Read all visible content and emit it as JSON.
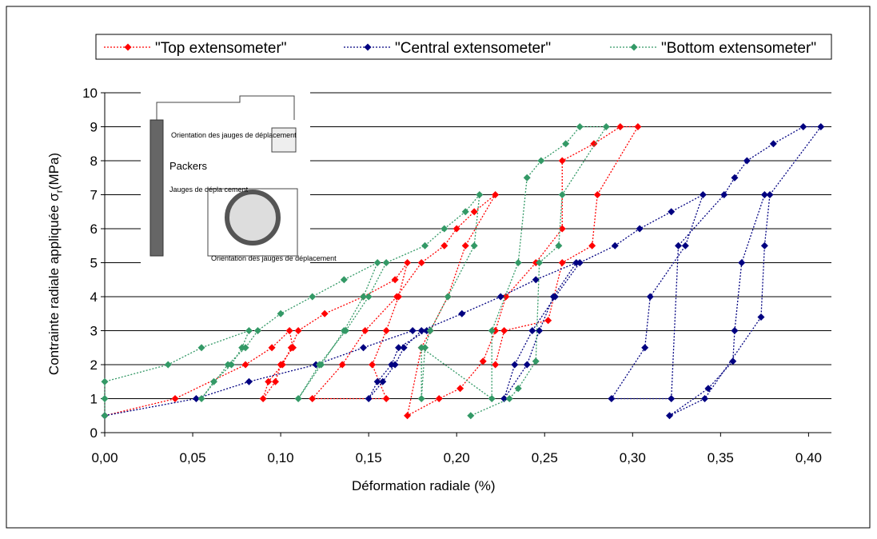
{
  "chart_data": {
    "type": "line",
    "xlabel": "Déformation radiale (%)",
    "ylabel": {
      "main": "Contrainte radiale appliquée",
      "symbol": "σ",
      "sub": "r",
      "unit": "(MPa)"
    },
    "xlim": [
      0,
      0.413
    ],
    "ylim": [
      0,
      10
    ],
    "xticks": [
      {
        "value": 0,
        "label": "0,00"
      },
      {
        "value": 0.05,
        "label": "0,05"
      },
      {
        "value": 0.1,
        "label": "0,10"
      },
      {
        "value": 0.15,
        "label": "0,15"
      },
      {
        "value": 0.2,
        "label": "0,20"
      },
      {
        "value": 0.25,
        "label": "0,25"
      },
      {
        "value": 0.3,
        "label": "0,30"
      },
      {
        "value": 0.35,
        "label": "0,35"
      },
      {
        "value": 0.4,
        "label": "0,40"
      }
    ],
    "yticks": [
      0,
      1,
      2,
      3,
      4,
      5,
      6,
      7,
      8,
      9,
      10
    ],
    "grid": true,
    "legend": "top",
    "series": [
      {
        "name": "\"Top extensometer\"",
        "color": "#ff0000",
        "x": [
          0,
          0.04,
          0.08,
          0.095,
          0.105,
          0.107,
          0.1,
          0.097,
          0.09,
          0.093,
          0.101,
          0.106,
          0.11,
          0.125,
          0.147,
          0.165,
          0.172,
          0.167,
          0.16,
          0.152,
          0.16,
          0.118,
          0.135,
          0.148,
          0.166,
          0.18,
          0.193,
          0.2,
          0.21,
          0.222,
          0.205,
          0.195,
          0.185,
          0.18,
          0.172,
          0.19,
          0.202,
          0.215,
          0.222,
          0.228,
          0.245,
          0.26,
          0.26,
          0.278,
          0.293,
          0.303,
          0.28,
          0.277,
          0.26,
          0.252,
          0.227,
          0.222
        ],
        "values": [
          0.5,
          1,
          2,
          2.5,
          3,
          2.5,
          2,
          1.5,
          1,
          1.5,
          2,
          2.5,
          3,
          3.5,
          4,
          4.5,
          5,
          4,
          3,
          2,
          1,
          1,
          2,
          3,
          4,
          5,
          5.5,
          6,
          6.5,
          7,
          5.5,
          4,
          3,
          2.5,
          0.5,
          1,
          1.3,
          2.1,
          3,
          4,
          5,
          6,
          8,
          8.5,
          9,
          9,
          7,
          5.5,
          5,
          3.3,
          3,
          2
        ]
      },
      {
        "name": "\"Central extensometer\"",
        "color": "#000080",
        "x": [
          0,
          0.052,
          0.082,
          0.12,
          0.147,
          0.175,
          0.183,
          0.167,
          0.163,
          0.155,
          0.15,
          0.158,
          0.165,
          0.17,
          0.18,
          0.203,
          0.225,
          0.245,
          0.268,
          0.255,
          0.247,
          0.24,
          0.227,
          0.233,
          0.243,
          0.256,
          0.27,
          0.29,
          0.304,
          0.322,
          0.34,
          0.33,
          0.31,
          0.307,
          0.288,
          0.322,
          0.326,
          0.352,
          0.358,
          0.365,
          0.38,
          0.397,
          0.407,
          0.378,
          0.375,
          0.373,
          0.341,
          0.321,
          0.343,
          0.357,
          0.358,
          0.362,
          0.375
        ],
        "values": [
          0.5,
          1,
          1.5,
          2,
          2.5,
          3,
          3,
          2.5,
          2,
          1.5,
          1,
          1.5,
          2,
          2.5,
          3,
          3.5,
          4,
          4.5,
          5,
          4,
          3,
          2,
          1,
          2,
          3,
          4,
          5,
          5.5,
          6,
          6.5,
          7,
          5.5,
          4,
          2.5,
          1,
          1,
          5.5,
          7,
          7.5,
          8,
          8.5,
          9,
          9,
          7,
          5.5,
          3.4,
          1,
          0.5,
          1.3,
          2.1,
          3,
          5,
          7
        ]
      },
      {
        "name": "\"Bottom extensometer\"",
        "color": "#339966",
        "x": [
          0,
          0,
          0,
          0.036,
          0.055,
          0.082,
          0.078,
          0.072,
          0.062,
          0.055,
          0.07,
          0.08,
          0.087,
          0.1,
          0.118,
          0.136,
          0.155,
          0.147,
          0.136,
          0.123,
          0.11,
          0.122,
          0.137,
          0.15,
          0.16,
          0.182,
          0.193,
          0.205,
          0.213,
          0.21,
          0.195,
          0.185,
          0.182,
          0.18,
          0.18,
          0.22,
          0.22,
          0.235,
          0.24,
          0.248,
          0.262,
          0.27,
          0.285,
          0.26,
          0.258,
          0.247,
          0.245,
          0.235,
          0.23,
          0.208
        ],
        "values": [
          0.5,
          1,
          1.5,
          2,
          2.5,
          3,
          2.5,
          2,
          1.5,
          1,
          2,
          2.5,
          3,
          3.5,
          4,
          4.5,
          5,
          4,
          3,
          2,
          1,
          2,
          3,
          4,
          5,
          5.5,
          6,
          6.5,
          7,
          5.5,
          4,
          3,
          2.5,
          1,
          2.5,
          1,
          3,
          5,
          7.5,
          8,
          8.5,
          9,
          9,
          7,
          5.5,
          5,
          2.1,
          1.3,
          1,
          0.5
        ]
      }
    ],
    "inset": {
      "label1": "Orientation des jauges de déplacement",
      "label2": "Packers",
      "label3": "Jauges de dépla cement",
      "label4": "Orientation des jauges de déplacement"
    }
  }
}
